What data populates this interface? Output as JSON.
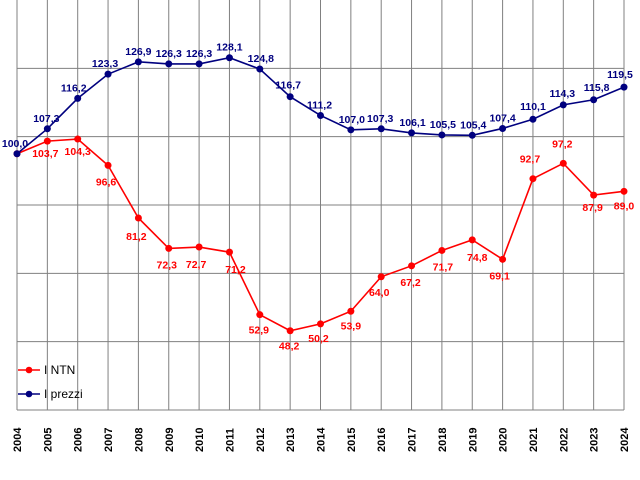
{
  "chart_data": {
    "type": "line",
    "title": "",
    "xlabel": "",
    "ylabel": "",
    "ylim": [
      25,
      145
    ],
    "grid": "vertical-and-horizontal",
    "legend_position": "bottom-left",
    "x": [
      "2004",
      "2005",
      "2006",
      "2007",
      "2008",
      "2009",
      "2010",
      "2011",
      "2012",
      "2013",
      "2014",
      "2015",
      "2016",
      "2017",
      "2018",
      "2019",
      "2020",
      "2021",
      "2022",
      "2023",
      "2024"
    ],
    "series": [
      {
        "name": "I NTN",
        "color": "#ff0000",
        "values": [
          100.0,
          103.7,
          104.3,
          96.6,
          81.2,
          72.3,
          72.7,
          71.2,
          52.9,
          48.2,
          50.2,
          53.9,
          64.0,
          67.2,
          71.7,
          74.8,
          69.1,
          92.7,
          97.2,
          87.9,
          89.0
        ],
        "labels": [
          "",
          "103,7",
          "104,3",
          "96,6",
          "81,2",
          "72,3",
          "72,7",
          "71,2",
          "52,9",
          "48,2",
          "50,2",
          "53,9",
          "64,0",
          "67,2",
          "71,7",
          "74,8",
          "69,1",
          "92,7",
          "97,2",
          "87,9",
          "89,0"
        ]
      },
      {
        "name": "I prezzi",
        "color": "#00007f",
        "values": [
          100.0,
          107.3,
          116.2,
          123.3,
          126.9,
          126.3,
          126.3,
          128.1,
          124.8,
          116.7,
          111.2,
          107.0,
          107.3,
          106.1,
          105.5,
          105.4,
          107.4,
          110.1,
          114.3,
          115.8,
          119.5
        ],
        "labels": [
          "100,0",
          "107,3",
          "116,2",
          "123,3",
          "126,9",
          "126,3",
          "126,3",
          "128,1",
          "124,8",
          "116,7",
          "111,2",
          "107,0",
          "107,3",
          "106,1",
          "105,5",
          "105,4",
          "107,4",
          "110,1",
          "114,3",
          "115,8",
          "119,5"
        ]
      }
    ]
  }
}
